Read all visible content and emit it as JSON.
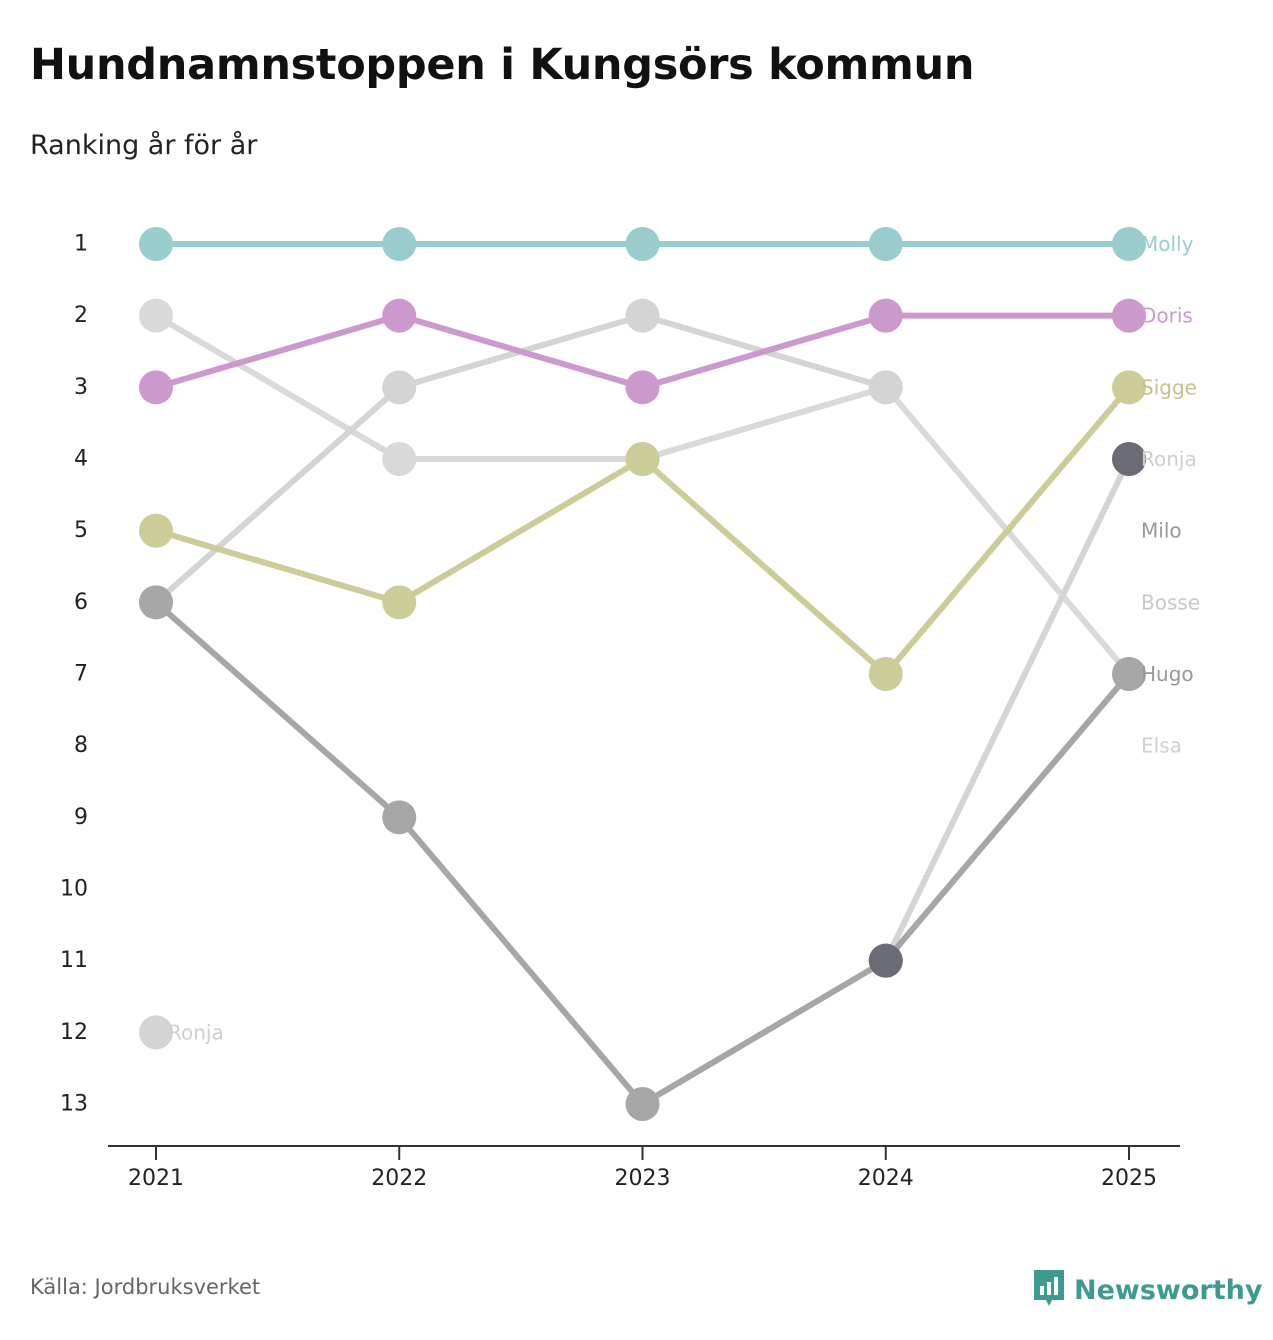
{
  "title": "Hundnamnstoppen i Kungsörs kommun",
  "subtitle": "Ranking år för år",
  "source": "Källa: Jordbruksverket",
  "brand": {
    "name": "Newsworthy",
    "icon": "newsworthy-logo-icon",
    "color": "#3d9a8f"
  },
  "chart_data": {
    "type": "line",
    "title": "Hundnamnstoppen i Kungsörs kommun",
    "subtitle": "Ranking år för år",
    "xlabel": "",
    "ylabel": "",
    "x": [
      "2021",
      "2022",
      "2023",
      "2024",
      "2025"
    ],
    "ylim": [
      1,
      13
    ],
    "y_inverted": true,
    "yticks": [
      "1",
      "2",
      "3",
      "4",
      "5",
      "6",
      "7",
      "8",
      "9",
      "10",
      "11",
      "12",
      "13"
    ],
    "grid": false,
    "series": [
      {
        "name": "Elsa",
        "label": "Elsa",
        "color": "#d9d9d9",
        "values": [
          2,
          4,
          4,
          3,
          7
        ]
      },
      {
        "name": "Bosse",
        "label": "Bosse",
        "color": "#d4d4d4",
        "values": [
          6,
          3,
          2,
          3,
          null
        ]
      },
      {
        "name": "Ronja",
        "label": "Ronja",
        "color": "#d4d4d4",
        "values": [
          12,
          null,
          null,
          11,
          4
        ]
      },
      {
        "name": "Hugo",
        "label": "Hugo",
        "color": "#a6a6a6",
        "values": [
          6,
          9,
          13,
          11,
          7
        ]
      },
      {
        "name": "Sigge",
        "label": "Sigge",
        "color": "#cccc99",
        "values": [
          5,
          6,
          4,
          7,
          3
        ]
      },
      {
        "name": "Doris",
        "label": "Doris",
        "color": "#cc99cc",
        "values": [
          3,
          2,
          3,
          2,
          2
        ]
      },
      {
        "name": "Molly",
        "label": "Molly",
        "color": "#99cccc",
        "values": [
          1,
          1,
          1,
          1,
          1
        ]
      }
    ],
    "end_labels": [
      {
        "text": "Molly",
        "rank": 1,
        "color": "#99cccc"
      },
      {
        "text": "Doris",
        "rank": 2,
        "color": "#cc99cc"
      },
      {
        "text": "Sigge",
        "rank": 3,
        "color": "#c2c288"
      },
      {
        "text": "Ronja",
        "rank": 4,
        "color": "#cfcfcf"
      },
      {
        "text": "Milo",
        "rank": 5,
        "color": "#999999"
      },
      {
        "text": "Bosse",
        "rank": 6,
        "color": "#c8c8c8"
      },
      {
        "text": "Hugo",
        "rank": 7,
        "color": "#999999"
      },
      {
        "text": "Elsa",
        "rank": 8,
        "color": "#d0d0d0"
      }
    ],
    "start_labels": [
      {
        "text": "Ronja",
        "rank": 12,
        "color": "#cfcfcf"
      }
    ],
    "highlight_markers": [
      {
        "year_index": 3,
        "rank": 11,
        "color": "#6b6b75"
      },
      {
        "year_index": 4,
        "rank": 4,
        "color": "#6b6b75"
      }
    ]
  }
}
